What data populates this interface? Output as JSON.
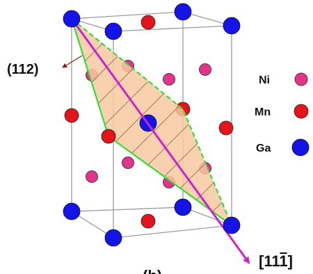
{
  "plane_label": "(112)",
  "direction": {
    "prefix": "[11",
    "last_digit": "1",
    "suffix": "]",
    "overbar_on_last": true
  },
  "partial_caption": "(b)",
  "legend": [
    {
      "label": "Ni",
      "color": "#e3338a"
    },
    {
      "label": "Mn",
      "color": "#e3141c"
    },
    {
      "label": "Ga",
      "color": "#1414e6"
    }
  ],
  "colors": {
    "cell_edges": "#9a9a9a",
    "plane_fill": "#f8c9a0",
    "plane_outline": "#33dd33",
    "hatching": "#8a7060",
    "direction_arrow": "#cc22cc",
    "pointer_arrow": "#8b1a1a"
  }
}
